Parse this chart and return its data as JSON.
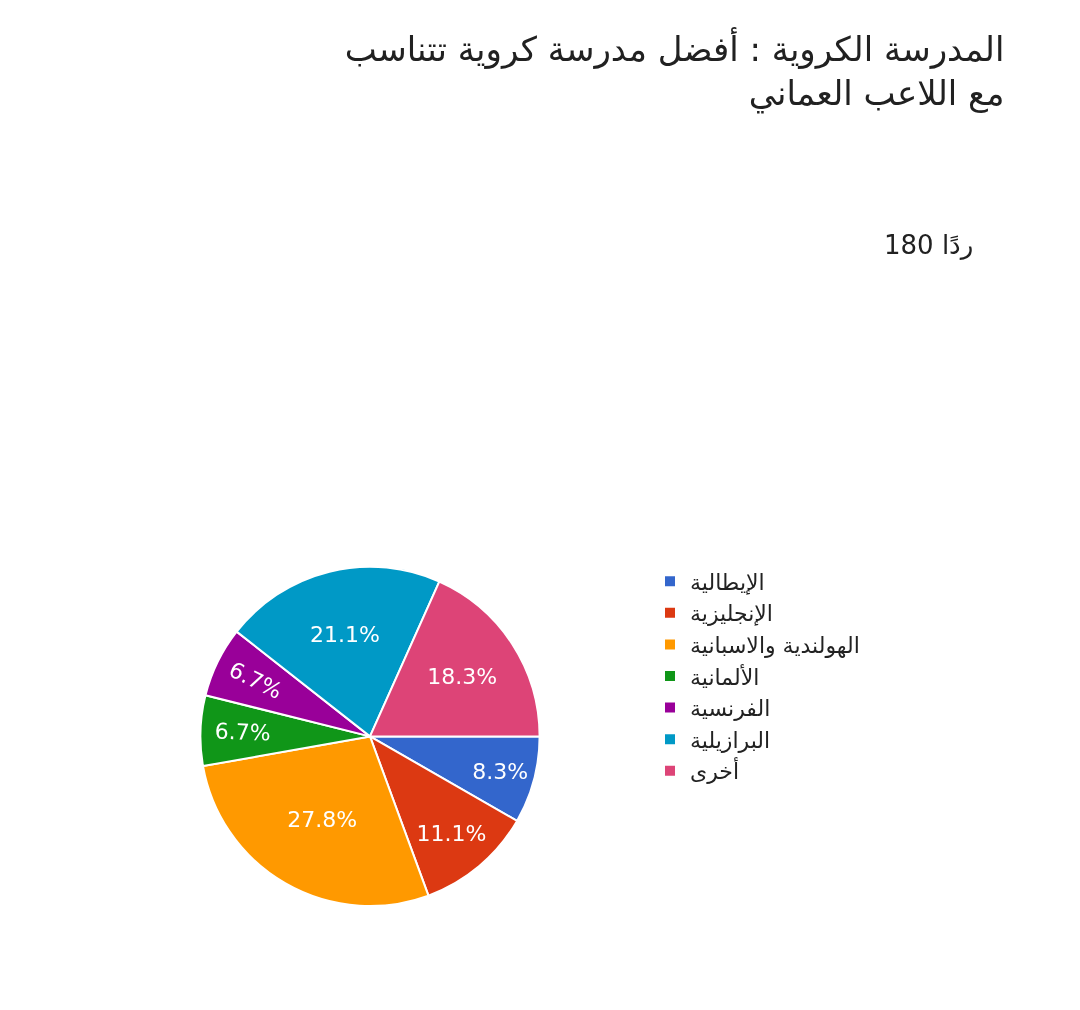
{
  "chart_data": {
    "type": "pie",
    "title": "المدرسة الكروية : أفضل مدرسة كروية تتناسب\nمع اللاعب العماني",
    "subtitle": "180 ردًا",
    "categories": [
      "الإيطالية",
      "الإنجليزية",
      "الهولندية والاسبانية",
      "الألمانية",
      "الفرنسية",
      "البرازيلية",
      "أخرى"
    ],
    "values": [
      8.3,
      11.1,
      27.8,
      6.7,
      6.7,
      21.1,
      18.3
    ],
    "value_labels": [
      "8.3%",
      "11.1%",
      "27.8%",
      "6.7%",
      "6.7%",
      "21.1%",
      "18.3%"
    ],
    "colors": [
      "#3366cc",
      "#dc3912",
      "#ff9900",
      "#109618",
      "#990099",
      "#0099c6",
      "#dd4477"
    ],
    "legend": "right"
  }
}
